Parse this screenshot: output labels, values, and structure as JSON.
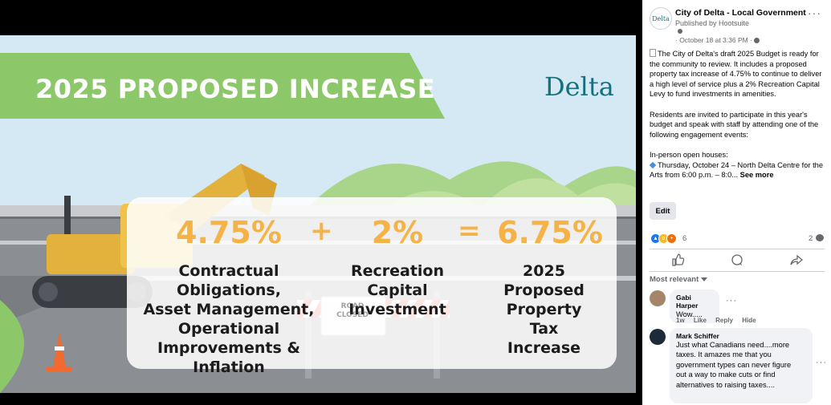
{
  "graphic": {
    "title": "2025 PROPOSED INCREASE",
    "logo": "Delta",
    "sign_text": "ROAD CLOSED",
    "items": [
      {
        "value": "4.75%",
        "label_lines": [
          "Contractual Obligations,",
          "Asset Management,",
          "Operational",
          "Improvements & Inflation"
        ]
      },
      {
        "value": "2%",
        "label_lines": [
          "Recreation",
          "Capital",
          "Investment"
        ]
      },
      {
        "value": "6.75%",
        "label_lines": [
          "2025",
          "Proposed",
          "Property",
          "Tax",
          "Increase"
        ]
      }
    ],
    "plus_sign": "+",
    "equals_sign": "=",
    "colors": {
      "banner": "#8cc86a",
      "value_orange": "#f5b347",
      "logo_teal": "#15707c",
      "sky": "#d4e9f3"
    }
  },
  "post": {
    "avatar_text": "Delta",
    "page_name": "City of Delta - Local Government",
    "published_by": "Published by Hootsuite",
    "date": "· October 18 at 3:36 PM · ",
    "more_label": "···",
    "body": {
      "p1": "The City of Delta's draft 2025 Budget is ready for the community to review. It includes a proposed property tax increase of 4.75% to continue to deliver a high level of service plus a 2% Recreation Capital Levy to fund investments in amenities.",
      "p2": "Residents are invited to participate in this year's budget and speak with staff by attending one of the following engagement events:",
      "p3": "In-person open houses:",
      "p4": "Thursday, October 24 – North Delta Centre for the Arts from 6:00 p.m. – 8:0...",
      "see_more": "See more"
    },
    "edit_label": "Edit",
    "reaction_count": "6",
    "comment_count": "2",
    "actions": [
      "like-icon",
      "comment-icon",
      "share-icon"
    ],
    "most_relevant": "Most relevant"
  },
  "comments": [
    {
      "name": "Gabi Harper",
      "text": "Wow.....",
      "time": "1w",
      "like": "Like",
      "reply": "Reply",
      "hide": "Hide",
      "more": "···"
    },
    {
      "name": "Mark Schiffer",
      "text_lines": [
        "Just what Canadians need....more",
        "taxes. It amazes me that you",
        "government types can never figure",
        "out a way to make cuts or find",
        "alternatives to raising taxes...."
      ],
      "more": "···"
    }
  ]
}
